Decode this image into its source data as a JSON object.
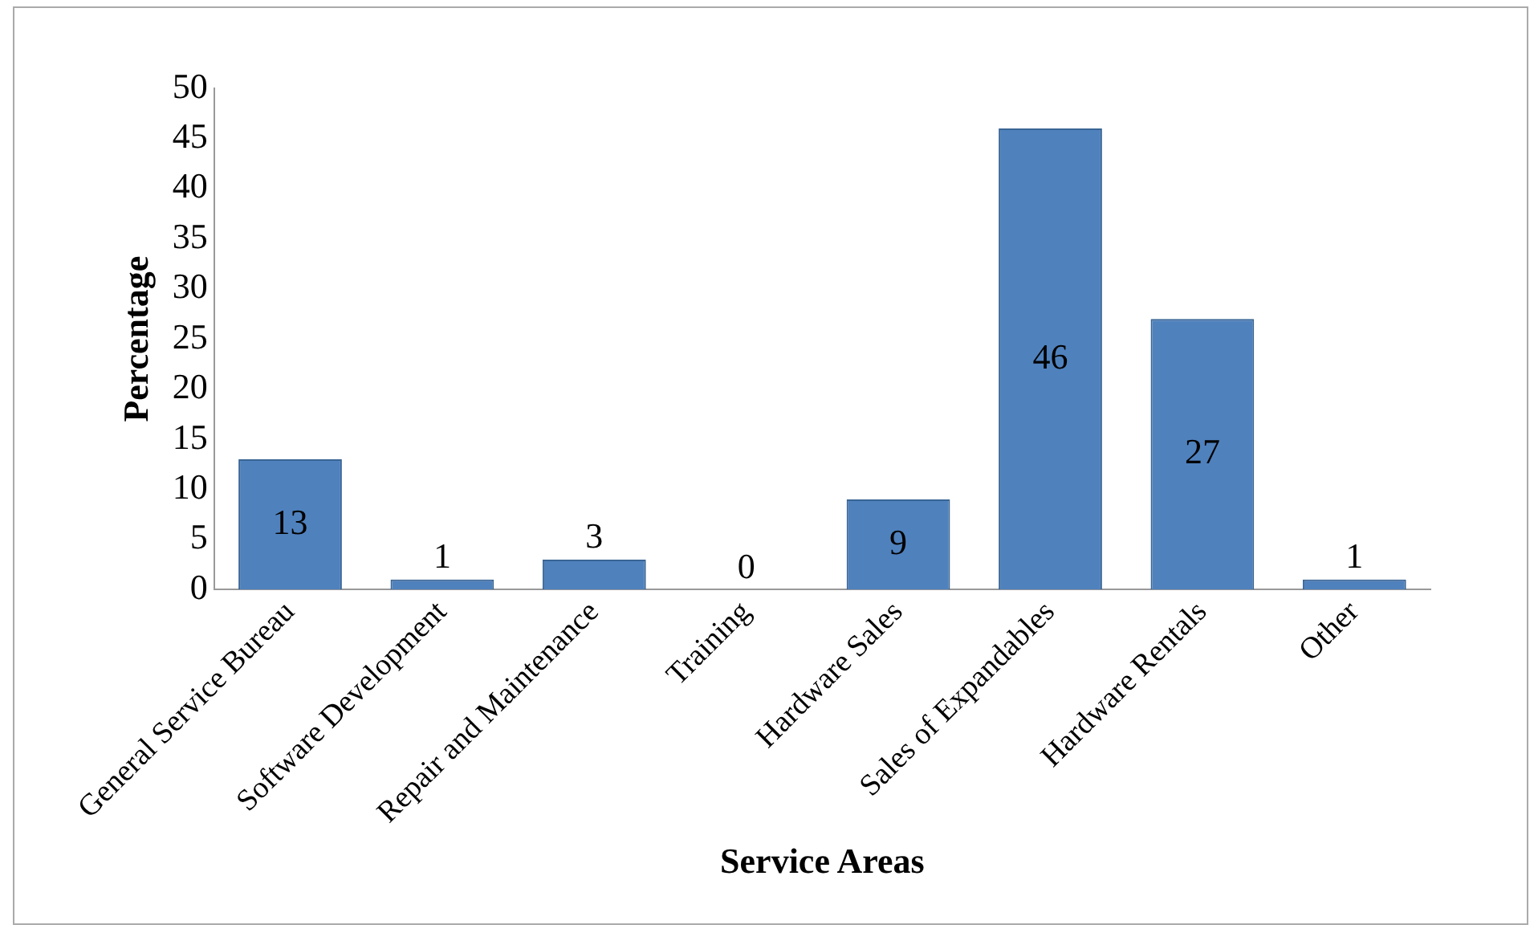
{
  "chart_data": {
    "type": "bar",
    "xlabel": "Service Areas",
    "ylabel": "Percentage",
    "categories": [
      "General Service Bureau",
      "Software Development",
      "Repair and Maintenance",
      "Training",
      "Hardware Sales",
      "Sales of Expandables",
      "Hardware Rentals",
      "Other"
    ],
    "values": [
      13,
      1,
      3,
      0,
      9,
      46,
      27,
      1
    ],
    "color": "#4f81bd",
    "ylim": [
      0,
      50
    ],
    "yticks": [
      0,
      5,
      10,
      15,
      20,
      25,
      30,
      35,
      40,
      45,
      50
    ],
    "grid": false,
    "legend": false,
    "data_labels": true
  }
}
